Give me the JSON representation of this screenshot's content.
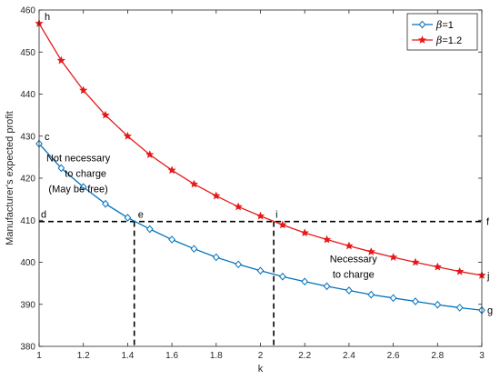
{
  "chart_data": {
    "type": "line",
    "title": "",
    "xlabel": "k",
    "ylabel": "Manufacturer's expected profit",
    "xlim": [
      1,
      3
    ],
    "ylim": [
      380,
      460
    ],
    "xticks": [
      1,
      1.2,
      1.4,
      1.6,
      1.8,
      2,
      2.2,
      2.4,
      2.6,
      2.8,
      3
    ],
    "xtick_labels": [
      "1",
      "1.2",
      "1.4",
      "1.6",
      "1.8",
      "2",
      "2.2",
      "2.4",
      "2.6",
      "2.8",
      "3"
    ],
    "yticks": [
      380,
      390,
      400,
      410,
      420,
      430,
      440,
      450,
      460
    ],
    "ytick_labels": [
      "380",
      "390",
      "400",
      "410",
      "420",
      "430",
      "440",
      "450",
      "460"
    ],
    "grid": false,
    "legend_position": "top-right",
    "x": [
      1,
      1.1,
      1.2,
      1.3,
      1.4,
      1.5,
      1.6,
      1.7,
      1.8,
      1.9,
      2,
      2.1,
      2.2,
      2.3,
      2.4,
      2.5,
      2.6,
      2.7,
      2.8,
      2.9,
      3
    ],
    "series": [
      {
        "name": "β=1",
        "legend_symbol": "β",
        "legend_value": "=1",
        "color": "#0072BD",
        "marker": "diamond",
        "values": [
          428.2,
          422.4,
          417.9,
          413.9,
          410.6,
          407.9,
          405.4,
          403.2,
          401.2,
          399.5,
          398.0,
          396.6,
          395.4,
          394.3,
          393.3,
          392.3,
          391.5,
          390.7,
          389.9,
          389.2,
          388.6
        ]
      },
      {
        "name": "β=1.2",
        "legend_symbol": "β",
        "legend_value": "=1.2",
        "color": "#E6191A",
        "marker": "star",
        "values": [
          456.8,
          448.0,
          440.9,
          435.0,
          430.0,
          425.6,
          421.9,
          418.6,
          415.8,
          413.2,
          411.0,
          408.9,
          407.0,
          405.4,
          403.9,
          402.5,
          401.2,
          400.0,
          398.9,
          397.8,
          396.9
        ]
      }
    ],
    "reference_lines": {
      "horizontal_y": 409.7,
      "vertical_x": [
        1.43,
        2.06
      ],
      "color": "#000000",
      "style": "dashed"
    },
    "point_labels": [
      {
        "text": "h",
        "x": 1,
        "y": 456.8
      },
      {
        "text": "c",
        "x": 1,
        "y": 428.2
      },
      {
        "text": "d",
        "x": 1,
        "y": 409.7
      },
      {
        "text": "e",
        "x": 1.43,
        "y": 409.7
      },
      {
        "text": "i",
        "x": 2.06,
        "y": 409.7
      },
      {
        "text": "f",
        "x": 3,
        "y": 409.7
      },
      {
        "text": "j",
        "x": 3,
        "y": 396.9
      },
      {
        "text": "g",
        "x": 3,
        "y": 388.6
      }
    ],
    "annotations": [
      {
        "lines": [
          "Not necessary",
          "to charge",
          "(May be free)"
        ],
        "x": 1.21,
        "y": 424
      },
      {
        "lines": [
          "Necessary",
          "to charge"
        ],
        "x": 2.42,
        "y": 400
      }
    ]
  }
}
